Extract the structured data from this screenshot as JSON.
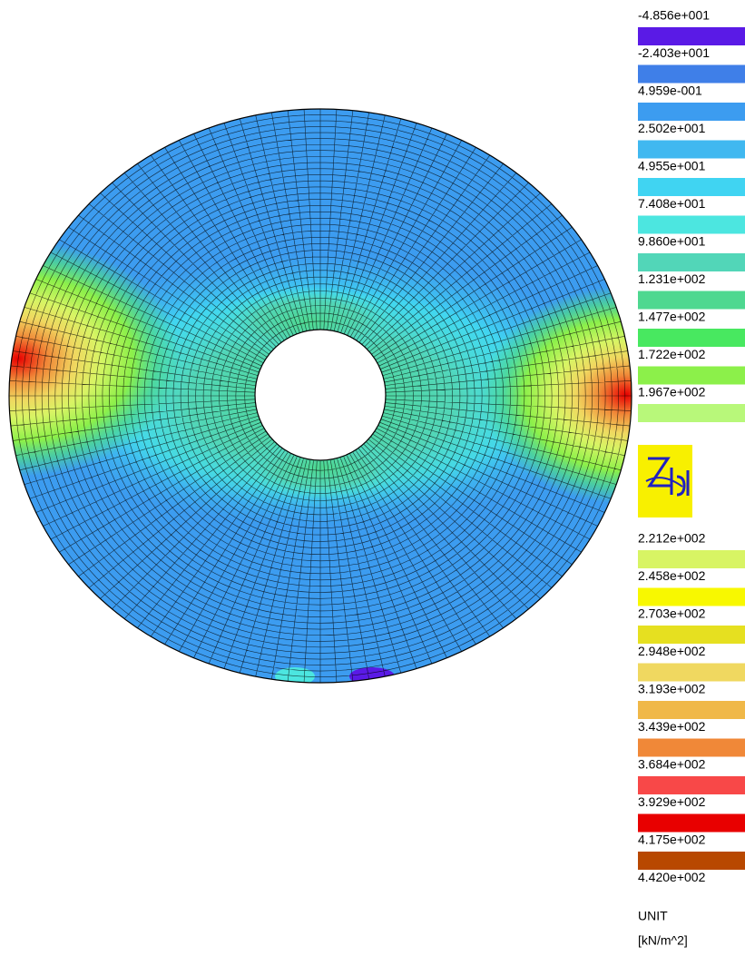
{
  "legend": {
    "labels": [
      "-4.856e+001",
      "-2.403e+001",
      "4.959e-001",
      "2.502e+001",
      "4.955e+001",
      "7.408e+001",
      "9.860e+001",
      "1.231e+002",
      "1.477e+002",
      "1.722e+002",
      "1.967e+002",
      "2.212e+002",
      "2.458e+002",
      "2.703e+002",
      "2.948e+002",
      "3.193e+002",
      "3.439e+002",
      "3.684e+002",
      "3.929e+002",
      "4.175e+002",
      "4.420e+002"
    ],
    "colors": [
      "#5a1ae6",
      "#3f7fe8",
      "#3c9cf0",
      "#40b8f0",
      "#40d4f2",
      "#4ce6e0",
      "#52d6b8",
      "#4ed890",
      "#48e860",
      "#8cf04a",
      "#b8f87a",
      "#d8f464",
      "#f8f800",
      "#e6e020",
      "#f0d860",
      "#f0b848",
      "#f08838",
      "#f84848",
      "#e80000",
      "#b84800"
    ],
    "unit_title": "UNIT",
    "unit": "[kN/m^2]"
  }
}
